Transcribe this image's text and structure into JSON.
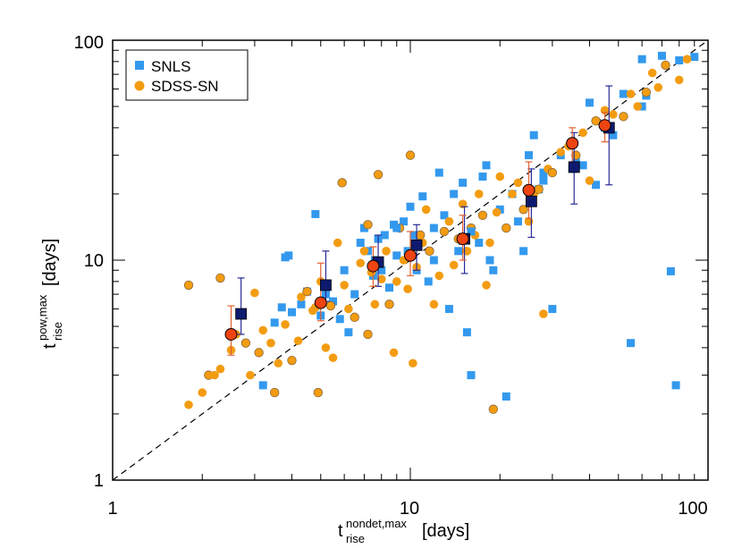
{
  "chart_data": {
    "type": "scatter",
    "title": "",
    "xlabel": {
      "symbol": "t",
      "superscript": "nondet,max",
      "subscript": "rise",
      "unit": "[days]"
    },
    "ylabel": {
      "symbol": "t",
      "superscript": "pow,max",
      "subscript": "rise",
      "unit": "[days]"
    },
    "xscale": "log",
    "yscale": "log",
    "xlim": [
      1,
      100
    ],
    "ylim": [
      1,
      100
    ],
    "xticks": [
      "1",
      "10",
      "100"
    ],
    "yticks": [
      "1",
      "10",
      "100"
    ],
    "legend": {
      "placement": "top-left",
      "entries": [
        "SNLS",
        "SDSS-SN"
      ]
    },
    "reference_line": {
      "style": "dashed",
      "relation": "y = x"
    },
    "colors": {
      "SNLS": "#3399ee",
      "SDSS-SN": "#f39c12",
      "SNLS_binned": "#0d1a6e",
      "SDSS_binned": "#ee4411",
      "SNLS_err": "#2a2a9a",
      "SDSS_err": "#e06030"
    },
    "series": [
      {
        "name": "SNLS",
        "marker": "square",
        "points": [
          [
            3.2,
            2.7
          ],
          [
            3.5,
            5.2
          ],
          [
            3.7,
            6.1
          ],
          [
            3.8,
            10.3
          ],
          [
            3.9,
            10.5
          ],
          [
            4.0,
            5.8
          ],
          [
            4.3,
            6.3
          ],
          [
            4.5,
            7.2
          ],
          [
            4.8,
            16.2
          ],
          [
            5.0,
            5.6
          ],
          [
            5.2,
            7.0
          ],
          [
            5.5,
            6.5
          ],
          [
            5.8,
            5.4
          ],
          [
            6.0,
            9.0
          ],
          [
            6.2,
            4.7
          ],
          [
            6.5,
            7.0
          ],
          [
            6.8,
            12.0
          ],
          [
            7.0,
            14.0
          ],
          [
            7.2,
            11.0
          ],
          [
            7.5,
            8.5
          ],
          [
            7.6,
            10.0
          ],
          [
            7.8,
            12.5
          ],
          [
            8.0,
            9.0
          ],
          [
            8.2,
            13.0
          ],
          [
            8.5,
            7.5
          ],
          [
            8.8,
            14.5
          ],
          [
            9.0,
            10.5
          ],
          [
            9.5,
            15.0
          ],
          [
            9.8,
            11.0
          ],
          [
            10.0,
            17.5
          ],
          [
            10.3,
            13.0
          ],
          [
            10.5,
            9.0
          ],
          [
            11.0,
            19.5
          ],
          [
            11.5,
            8.0
          ],
          [
            12.0,
            10.0
          ],
          [
            12.5,
            25.0
          ],
          [
            13.0,
            16.0
          ],
          [
            13.5,
            6.0
          ],
          [
            14.0,
            20.0
          ],
          [
            14.5,
            11.0
          ],
          [
            15.0,
            22.5
          ],
          [
            15.5,
            4.7
          ],
          [
            16.0,
            3.0
          ],
          [
            17.0,
            12.0
          ],
          [
            17.5,
            24.0
          ],
          [
            18.0,
            27.0
          ],
          [
            18.5,
            10.0
          ],
          [
            19.0,
            9.0
          ],
          [
            20.0,
            17.0
          ],
          [
            21.0,
            2.4
          ],
          [
            22.0,
            20.0
          ],
          [
            23.0,
            15.0
          ],
          [
            24.0,
            11.0
          ],
          [
            25.0,
            30.0
          ],
          [
            26.0,
            37.0
          ],
          [
            27.0,
            21.0
          ],
          [
            28.0,
            25.0
          ],
          [
            30.0,
            6.0
          ],
          [
            32.0,
            30.0
          ],
          [
            35.0,
            26.0
          ],
          [
            36.0,
            28.0
          ],
          [
            38.0,
            27.0
          ],
          [
            40.0,
            52.0
          ],
          [
            42.0,
            22.0
          ],
          [
            45.0,
            40.0
          ],
          [
            48.0,
            37.0
          ],
          [
            52.0,
            57.0
          ],
          [
            55.0,
            4.2
          ],
          [
            60.0,
            50.0
          ],
          [
            62.0,
            56.0
          ],
          [
            70.0,
            85.0
          ],
          [
            75.0,
            8.9
          ],
          [
            78.0,
            2.7
          ],
          [
            80.0,
            81.0
          ],
          [
            90.0,
            84.0
          ],
          [
            60.0,
            82.0
          ],
          [
            28.0,
            23.0
          ],
          [
            16.0,
            13.5
          ],
          [
            12.0,
            14.0
          ],
          [
            9.0,
            14.0
          ]
        ]
      },
      {
        "name": "SDSS-SN",
        "marker": "circle",
        "points": [
          [
            1.8,
            7.7
          ],
          [
            1.8,
            2.2
          ],
          [
            2.0,
            2.5
          ],
          [
            2.1,
            3.0
          ],
          [
            2.2,
            3.0
          ],
          [
            2.3,
            3.2
          ],
          [
            2.3,
            8.3
          ],
          [
            2.5,
            3.9
          ],
          [
            2.6,
            4.6
          ],
          [
            2.8,
            4.2
          ],
          [
            2.9,
            3.0
          ],
          [
            3.0,
            7.1
          ],
          [
            3.1,
            3.8
          ],
          [
            3.2,
            4.8
          ],
          [
            3.4,
            4.2
          ],
          [
            3.5,
            2.5
          ],
          [
            3.6,
            3.4
          ],
          [
            3.8,
            5.1
          ],
          [
            4.0,
            3.5
          ],
          [
            4.2,
            4.3
          ],
          [
            4.3,
            6.8
          ],
          [
            4.5,
            7.2
          ],
          [
            4.7,
            5.9
          ],
          [
            4.8,
            6.1
          ],
          [
            4.9,
            2.5
          ],
          [
            5.0,
            8.0
          ],
          [
            5.2,
            4.0
          ],
          [
            5.4,
            6.2
          ],
          [
            5.5,
            3.6
          ],
          [
            5.7,
            12.0
          ],
          [
            5.9,
            22.5
          ],
          [
            6.0,
            7.7
          ],
          [
            6.2,
            6.0
          ],
          [
            6.5,
            5.5
          ],
          [
            6.8,
            9.7
          ],
          [
            7.0,
            11.0
          ],
          [
            7.2,
            4.6
          ],
          [
            7.4,
            8.8
          ],
          [
            7.6,
            6.3
          ],
          [
            7.8,
            24.5
          ],
          [
            8.0,
            8.2
          ],
          [
            8.3,
            11.0
          ],
          [
            8.5,
            6.3
          ],
          [
            8.8,
            3.8
          ],
          [
            9.0,
            8.0
          ],
          [
            9.2,
            14.0
          ],
          [
            9.5,
            10.0
          ],
          [
            9.8,
            7.4
          ],
          [
            10.0,
            30.0
          ],
          [
            10.2,
            3.4
          ],
          [
            10.5,
            9.3
          ],
          [
            10.8,
            13.0
          ],
          [
            11.0,
            12.0
          ],
          [
            11.3,
            17.0
          ],
          [
            11.6,
            11.0
          ],
          [
            12.0,
            6.3
          ],
          [
            12.5,
            8.5
          ],
          [
            13.0,
            13.5
          ],
          [
            13.5,
            15.0
          ],
          [
            14.0,
            9.5
          ],
          [
            14.5,
            12.5
          ],
          [
            15.0,
            18.0
          ],
          [
            15.5,
            11.0
          ],
          [
            16.0,
            14.0
          ],
          [
            16.5,
            13.0
          ],
          [
            17.0,
            20.0
          ],
          [
            17.5,
            16.0
          ],
          [
            18.0,
            7.7
          ],
          [
            18.5,
            12.0
          ],
          [
            19.0,
            2.1
          ],
          [
            19.5,
            16.5
          ],
          [
            20.0,
            24.0
          ],
          [
            21.0,
            14.0
          ],
          [
            22.0,
            20.0
          ],
          [
            23.0,
            22.5
          ],
          [
            24.0,
            17.0
          ],
          [
            25.0,
            15.0
          ],
          [
            26.0,
            20.0
          ],
          [
            27.0,
            21.0
          ],
          [
            28.0,
            5.7
          ],
          [
            29.0,
            26.0
          ],
          [
            30.0,
            25.0
          ],
          [
            32.0,
            31.0
          ],
          [
            34.0,
            33.0
          ],
          [
            36.0,
            30.0
          ],
          [
            38.0,
            38.0
          ],
          [
            40.0,
            23.0
          ],
          [
            42.0,
            43.0
          ],
          [
            45.0,
            48.0
          ],
          [
            48.0,
            46.0
          ],
          [
            52.0,
            45.0
          ],
          [
            55.0,
            57.0
          ],
          [
            58.0,
            50.0
          ],
          [
            62.0,
            58.0
          ],
          [
            65.0,
            71.0
          ],
          [
            68.0,
            61.0
          ],
          [
            72.0,
            77.0
          ],
          [
            80.0,
            66.0
          ],
          [
            85.0,
            82.0
          ],
          [
            7.2,
            14.5
          ]
        ]
      },
      {
        "name": "SNLS binned",
        "marker": "square",
        "points": [
          {
            "x": 2.7,
            "y": 5.7,
            "ylo": 4.6,
            "yhi": 8.3
          },
          {
            "x": 5.2,
            "y": 7.7,
            "ylo": 6.5,
            "yhi": 11.0
          },
          {
            "x": 7.8,
            "y": 9.8,
            "ylo": 7.6,
            "yhi": 13.0
          },
          {
            "x": 10.5,
            "y": 11.7,
            "ylo": 9.0,
            "yhi": 14.5
          },
          {
            "x": 15.2,
            "y": 12.5,
            "ylo": 8.7,
            "yhi": 17.5
          },
          {
            "x": 25.5,
            "y": 18.5,
            "ylo": 12.7,
            "yhi": 26.0
          },
          {
            "x": 35.5,
            "y": 26.5,
            "ylo": 18.0,
            "yhi": 38.0
          },
          {
            "x": 46.5,
            "y": 40.0,
            "ylo": 22.0,
            "yhi": 62.0
          }
        ]
      },
      {
        "name": "SDSS-SN binned",
        "marker": "circle",
        "points": [
          {
            "x": 2.5,
            "y": 4.6,
            "ylo": 3.7,
            "yhi": 6.2
          },
          {
            "x": 5.0,
            "y": 6.4,
            "ylo": 5.3,
            "yhi": 9.7
          },
          {
            "x": 7.5,
            "y": 9.4,
            "ylo": 7.6,
            "yhi": 11.5
          },
          {
            "x": 10.0,
            "y": 10.5,
            "ylo": 8.5,
            "yhi": 13.5
          },
          {
            "x": 15.0,
            "y": 12.5,
            "ylo": 10.0,
            "yhi": 16.0
          },
          {
            "x": 25.0,
            "y": 20.8,
            "ylo": 15.5,
            "yhi": 28.0
          },
          {
            "x": 35.0,
            "y": 34.0,
            "ylo": 26.0,
            "yhi": 40.0
          },
          {
            "x": 45.0,
            "y": 41.0,
            "ylo": 34.5,
            "yhi": 47.0
          }
        ]
      }
    ]
  }
}
